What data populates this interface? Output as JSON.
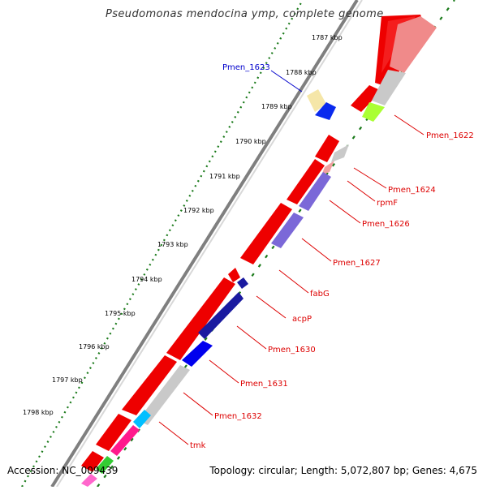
{
  "title": "Pseudomonas mendocina ymp, complete genome",
  "footer": {
    "accession": "Accession: NC_009439",
    "summary": "Topology: circular; Length: 5,072,807 bp; Genes: 4,675"
  },
  "colors": {
    "forward_cds": "#ee0000",
    "highlight_label": "#0000cc",
    "label": "#dd0000",
    "backbone": "#7f7f7f",
    "ticks": "#1a7a1a"
  },
  "kbp_ticks": [
    "1787 kbp",
    "1788 kbp",
    "1789 kbp",
    "1790 kbp",
    "1791 kbp",
    "1792 kbp",
    "1793 kbp",
    "1794 kbp",
    "1795 kbp",
    "1796 kbp",
    "1797 kbp",
    "1798 kbp"
  ],
  "gene_labels": [
    {
      "text": "Pmen_1623",
      "highlight": true
    },
    {
      "text": "Pmen_1622",
      "highlight": false
    },
    {
      "text": "Pmen_1624",
      "highlight": false
    },
    {
      "text": "rpmF",
      "highlight": false
    },
    {
      "text": "Pmen_1626",
      "highlight": false
    },
    {
      "text": "Pmen_1627",
      "highlight": false
    },
    {
      "text": "fabG",
      "highlight": false
    },
    {
      "text": "acpP",
      "highlight": false
    },
    {
      "text": "Pmen_1630",
      "highlight": false
    },
    {
      "text": "Pmen_1631",
      "highlight": false
    },
    {
      "text": "Pmen_1632",
      "highlight": false
    },
    {
      "text": "tmk",
      "highlight": false
    }
  ]
}
